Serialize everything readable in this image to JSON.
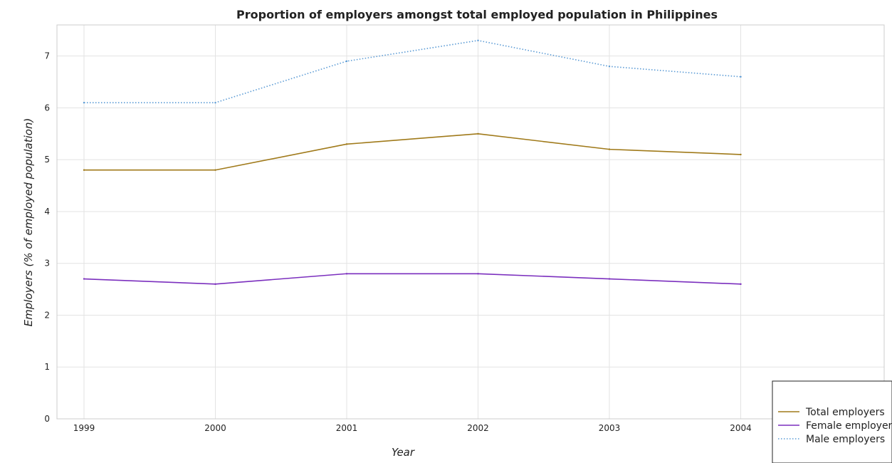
{
  "chart_data": {
    "type": "line",
    "title": "Proportion of employers amongst total employed population in Philippines",
    "xlabel": "Year",
    "ylabel": "Employers (% of employed population)",
    "categories": [
      "1999",
      "2000",
      "2001",
      "2002",
      "2003",
      "2004"
    ],
    "ylim": [
      0,
      7.6
    ],
    "yticks": [
      "0",
      "1",
      "2",
      "3",
      "4",
      "5",
      "6",
      "7"
    ],
    "grid": true,
    "legend_position": "bottom-right",
    "series": [
      {
        "name": "Total employers",
        "color": "#a07a1a",
        "values": [
          4.8,
          4.8,
          5.3,
          5.5,
          5.2,
          5.1
        ],
        "dashed": false
      },
      {
        "name": "Female employers",
        "color": "#7b2fbe",
        "values": [
          2.7,
          2.6,
          2.8,
          2.8,
          2.7,
          2.6
        ],
        "dashed": false
      },
      {
        "name": "Male employers",
        "color": "#5b9bd5",
        "values": [
          6.1,
          6.1,
          6.9,
          7.3,
          6.8,
          6.6
        ],
        "dashed": true
      }
    ]
  }
}
